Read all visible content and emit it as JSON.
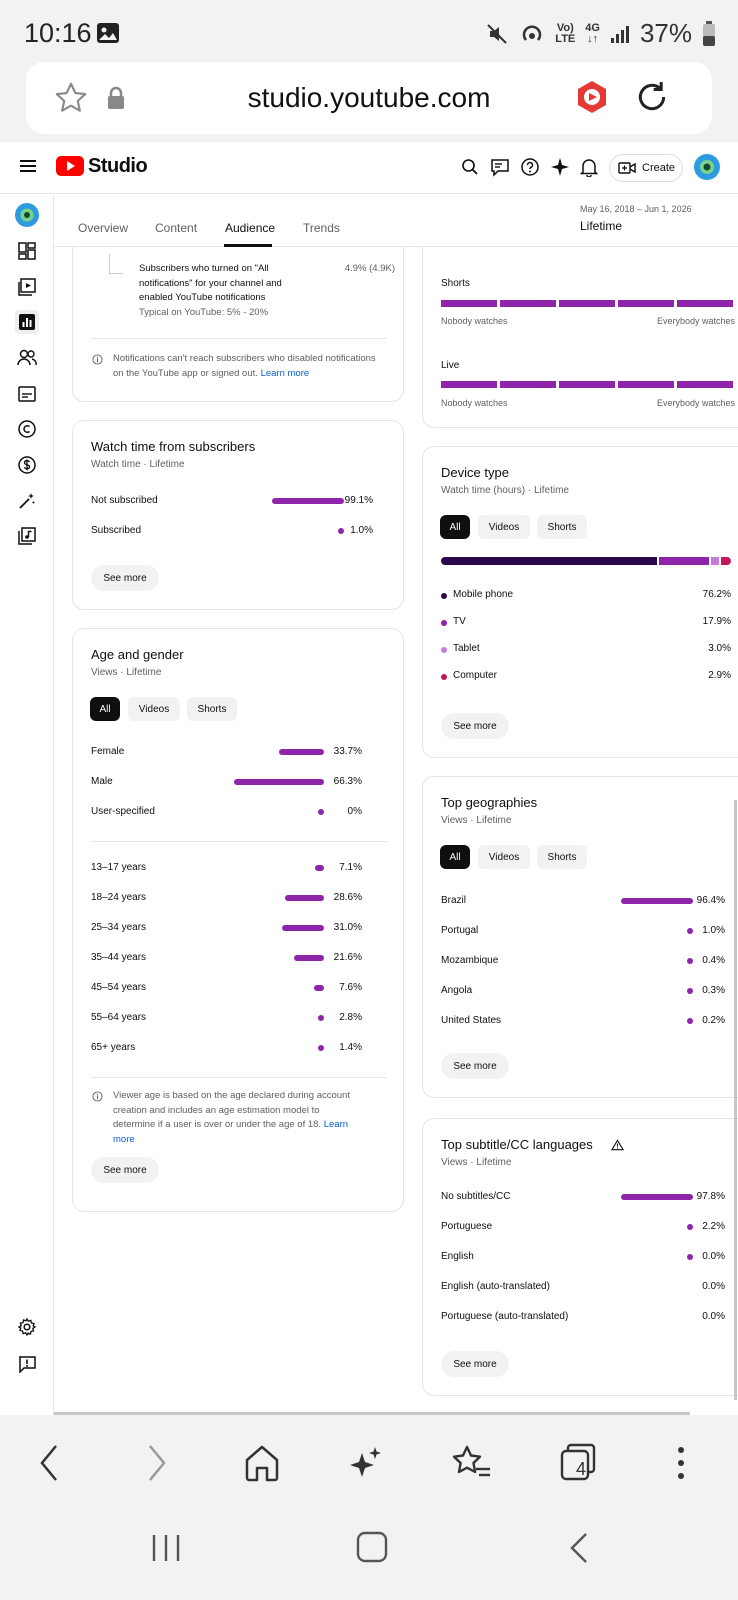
{
  "status": {
    "time": "10:16",
    "battery": "37%",
    "net_top": "Vo)",
    "net_bottom": "LTE",
    "net2_top": "4G",
    "net2_bottom": "↓↑"
  },
  "browser": {
    "url": "studio.youtube.com",
    "tabs_count": "4"
  },
  "header": {
    "logo_text": "Studio",
    "create_label": "Create"
  },
  "tabs": {
    "items": [
      "Overview",
      "Content",
      "Audience",
      "Trends"
    ],
    "active": "Audience"
  },
  "date": {
    "range": "May 16, 2018 – Jun 1, 2026",
    "label": "Lifetime"
  },
  "notifications": {
    "row_text": [
      "Subscribers who turned on \"All",
      "notifications\" for your channel and",
      "enabled YouTube notifications"
    ],
    "typical": "Typical on YouTube: 5% - 20%",
    "value": "4.9% (4.9K)",
    "note": "Notifications can't reach subscribers who disabled notifications on the YouTube app or signed out.",
    "learn_more": "Learn more"
  },
  "watch_subs": {
    "title": "Watch time from subscribers",
    "sub": "Watch time · Lifetime",
    "rows": [
      {
        "label": "Not subscribed",
        "value": "99.1%",
        "pct": 99.1
      },
      {
        "label": "Subscribed",
        "value": "1.0%",
        "pct": 1.0
      }
    ],
    "see_more": "See more"
  },
  "age_gender": {
    "title": "Age and gender",
    "sub": "Views · Lifetime",
    "chips": [
      "All",
      "Videos",
      "Shorts"
    ],
    "gender": [
      {
        "label": "Female",
        "value": "33.7%",
        "pct": 33.7
      },
      {
        "label": "Male",
        "value": "66.3%",
        "pct": 66.3
      },
      {
        "label": "User-specified",
        "value": "0%",
        "pct": 0
      }
    ],
    "ages": [
      {
        "label": "13–17 years",
        "value": "7.1%",
        "pct": 7.1
      },
      {
        "label": "18–24 years",
        "value": "28.6%",
        "pct": 28.6
      },
      {
        "label": "25–34 years",
        "value": "31.0%",
        "pct": 31.0
      },
      {
        "label": "35–44 years",
        "value": "21.6%",
        "pct": 21.6
      },
      {
        "label": "45–54 years",
        "value": "7.6%",
        "pct": 7.6
      },
      {
        "label": "55–64 years",
        "value": "2.8%",
        "pct": 2.8
      },
      {
        "label": "65+ years",
        "value": "1.4%",
        "pct": 1.4
      }
    ],
    "note_lines": [
      "Viewer age is based on the age declared during account",
      "creation and includes an age estimation model to",
      "determine if a user is over or under the age of 18."
    ],
    "learn_1": "Learn",
    "learn_2": "more",
    "see_more": "See more"
  },
  "engagement": {
    "shorts_label": "Shorts",
    "live_label": "Live",
    "nobody": "Nobody watches",
    "everybody": "Everybody watches"
  },
  "device": {
    "title": "Device type",
    "sub": "Watch time (hours) · Lifetime",
    "chips": [
      "All",
      "Videos",
      "Shorts"
    ],
    "rows": [
      {
        "label": "Mobile phone",
        "value": "76.2%",
        "pct": 76.2,
        "color": "#2a0a4a"
      },
      {
        "label": "TV",
        "value": "17.9%",
        "pct": 17.9,
        "color": "#8e24aa"
      },
      {
        "label": "Tablet",
        "value": "3.0%",
        "pct": 3.0,
        "color": "#c77dd8"
      },
      {
        "label": "Computer",
        "value": "2.9%",
        "pct": 2.9,
        "color": "#c2185b"
      }
    ],
    "see_more": "See more"
  },
  "geo": {
    "title": "Top geographies",
    "sub": "Views · Lifetime",
    "chips": [
      "All",
      "Videos",
      "Shorts"
    ],
    "rows": [
      {
        "label": "Brazil",
        "value": "96.4%",
        "pct": 96.4
      },
      {
        "label": "Portugal",
        "value": "1.0%",
        "pct": 1.0
      },
      {
        "label": "Mozambique",
        "value": "0.4%",
        "pct": 0.4
      },
      {
        "label": "Angola",
        "value": "0.3%",
        "pct": 0.3
      },
      {
        "label": "United States",
        "value": "0.2%",
        "pct": 0.2
      }
    ],
    "see_more": "See more"
  },
  "subtitles": {
    "title": "Top subtitle/CC languages",
    "sub": "Views · Lifetime",
    "rows": [
      {
        "label": "No subtitles/CC",
        "value": "97.8%",
        "pct": 97.8
      },
      {
        "label": "Portuguese",
        "value": "2.2%",
        "pct": 2.2
      },
      {
        "label": "English",
        "value": "0.0%",
        "pct": 0.01
      },
      {
        "label": "English (auto-translated)",
        "value": "0.0%",
        "pct": 0
      },
      {
        "label": "Portuguese (auto-translated)",
        "value": "0.0%",
        "pct": 0
      }
    ],
    "see_more": "See more"
  },
  "colors": {
    "accent": "#8e24aa",
    "brand_red": "#ff0000",
    "link": "#065fd4"
  }
}
